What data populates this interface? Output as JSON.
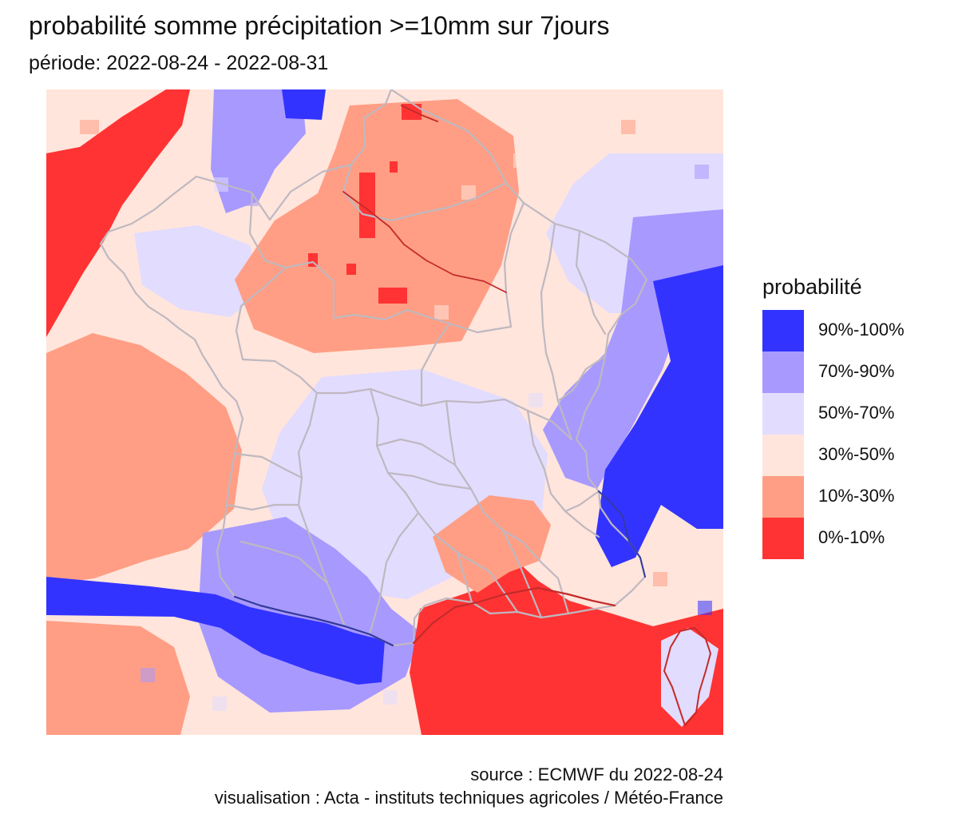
{
  "title": "probabilité somme précipitation >=10mm sur 7jours",
  "subtitle": "période: 2022-08-24 - 2022-08-31",
  "legend": {
    "title": "probabilité",
    "items": [
      {
        "label": "90%-100%",
        "color": "#3333ff"
      },
      {
        "label": "70%-90%",
        "color": "#a899ff"
      },
      {
        "label": "50%-70%",
        "color": "#e2dcff"
      },
      {
        "label": "30%-50%",
        "color": "#ffe5dc"
      },
      {
        "label": "10%-30%",
        "color": "#ff9e84"
      },
      {
        "label": "0%-10%",
        "color": "#ff3333"
      }
    ]
  },
  "map": {
    "boundary_color": "#bfb8c0",
    "river_color": "#c42b2b",
    "dark_line_color": "#333aa0"
  },
  "source": "source : ECMWF du 2022-08-24",
  "credit": "visualisation : Acta - instituts techniques agricoles / Météo-France"
}
